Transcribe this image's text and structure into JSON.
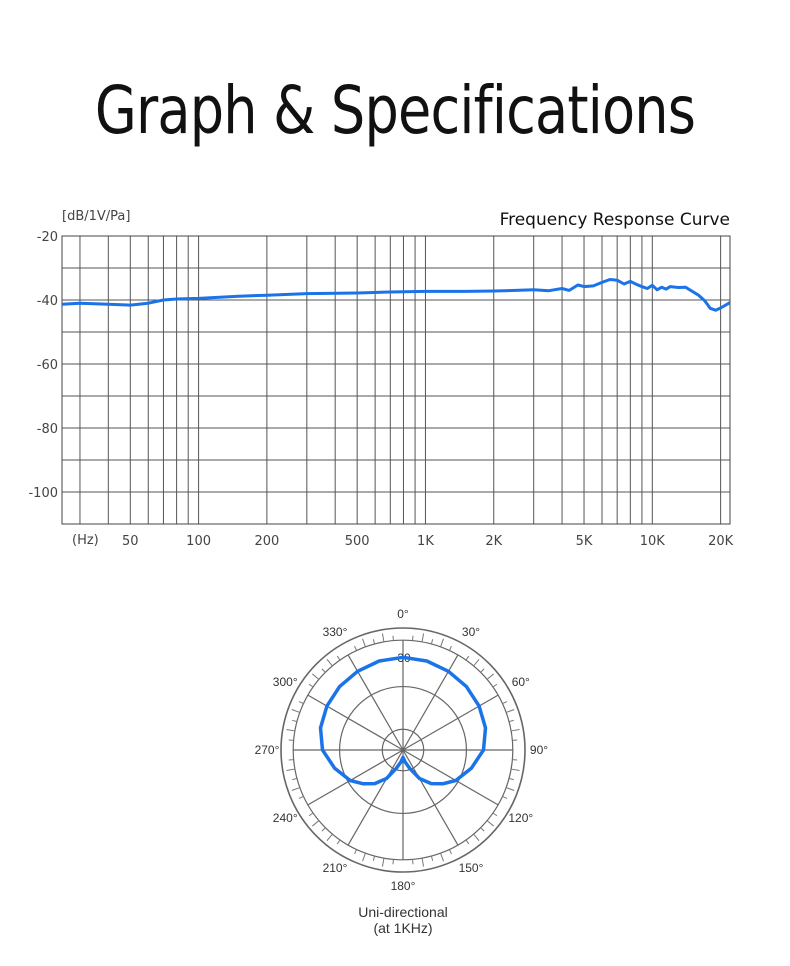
{
  "page": {
    "title": "Graph & Specifications"
  },
  "chart_data": [
    {
      "type": "line",
      "title": "Frequency Response Curve",
      "ylabel": "[dB/1V/Pa]",
      "xlabel": "(Hz)",
      "x_scale": "log",
      "xlim": [
        25,
        22000
      ],
      "ylim": [
        -110,
        -20
      ],
      "y_ticks": [
        -20,
        -40,
        -60,
        -80,
        -100
      ],
      "y_tick_labels": [
        "-20",
        "-40",
        "-60",
        "-80",
        "-100"
      ],
      "x_ticks": [
        50,
        100,
        200,
        500,
        1000,
        2000,
        5000,
        10000,
        20000
      ],
      "x_tick_labels": [
        "50",
        "100",
        "200",
        "500",
        "1K",
        "2K",
        "5K",
        "10K",
        "20K"
      ],
      "grid": true,
      "line_color": "#1a73e8",
      "series": [
        {
          "x": [
            25,
            30,
            40,
            50,
            60,
            70,
            80,
            100,
            150,
            200,
            300,
            500,
            700,
            1000,
            1500,
            2000,
            2500,
            3000,
            3500,
            4000,
            4300,
            4700,
            5000,
            5500,
            6000,
            6500,
            7000,
            7500,
            8000,
            8500,
            9000,
            9500,
            10000,
            10500,
            11000,
            11500,
            12000,
            13000,
            14000,
            15000,
            16000,
            17000,
            18000,
            19000,
            20000,
            22000
          ],
          "y": [
            -41.3,
            -41.0,
            -41.3,
            -41.6,
            -41.0,
            -40.0,
            -39.7,
            -39.5,
            -38.8,
            -38.5,
            -38.0,
            -37.8,
            -37.5,
            -37.3,
            -37.3,
            -37.2,
            -37.0,
            -36.8,
            -37.1,
            -36.4,
            -37.0,
            -35.3,
            -35.8,
            -35.6,
            -34.5,
            -33.6,
            -33.8,
            -35.0,
            -34.2,
            -35.1,
            -35.8,
            -36.4,
            -35.4,
            -36.8,
            -36.0,
            -36.6,
            -35.8,
            -36.1,
            -36.0,
            -37.3,
            -38.5,
            -40.2,
            -42.6,
            -43.2,
            -42.5,
            -40.8
          ]
        }
      ]
    },
    {
      "type": "polar",
      "caption_line1": "Uni-directional",
      "caption_line2": "(at 1KHz)",
      "ring_label": "-30",
      "angle_labels": [
        "0°",
        "30°",
        "60°",
        "90°",
        "120°",
        "150°",
        "180°",
        "210°",
        "240°",
        "270°",
        "300°",
        "330°"
      ],
      "line_color": "#1a73e8",
      "pattern_deg": [
        0,
        15,
        30,
        45,
        60,
        75,
        90,
        105,
        120,
        130,
        140,
        150,
        160,
        170,
        180
      ],
      "pattern_radius_frac": [
        0.76,
        0.755,
        0.745,
        0.735,
        0.72,
        0.7,
        0.66,
        0.58,
        0.5,
        0.43,
        0.36,
        0.27,
        0.16,
        0.1,
        0.06
      ]
    }
  ]
}
